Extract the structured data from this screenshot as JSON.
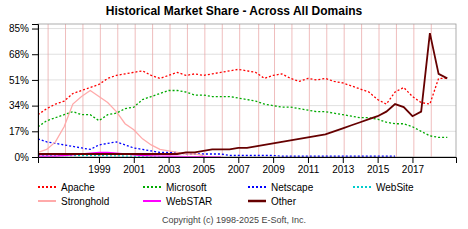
{
  "chart_data": {
    "type": "line",
    "title": "Historical Market Share - Across All Domains",
    "annotations": [
      "Copyright (c) 1998-2025 E-Soft, Inc."
    ],
    "xlim": [
      1995.5,
      2019.5
    ],
    "xticks": [
      1999,
      2001,
      2003,
      2005,
      2007,
      2009,
      2011,
      2013,
      2015,
      2017
    ],
    "ylim": [
      0,
      88
    ],
    "yticks": [
      {
        "value": 0,
        "label": "0%"
      },
      {
        "value": 17,
        "label": "17%"
      },
      {
        "value": 34,
        "label": "34%"
      },
      {
        "value": 51,
        "label": "51%"
      },
      {
        "value": 68,
        "label": "68%"
      },
      {
        "value": 85,
        "label": "85%"
      }
    ],
    "grid": true,
    "vlines": [
      1996.08,
      1997.08,
      1998.08,
      1999.08,
      2000.08,
      2001.08,
      2002.08,
      2003.08,
      2004.08,
      2005.08,
      2006.08,
      2007.08,
      2008.17,
      2009.08,
      2010.08,
      2011.08,
      2012.08,
      2013.08,
      2014.08,
      2015.08,
      2016.08,
      2017.08,
      2018.08
    ],
    "series": [
      {
        "name": "Apache",
        "color": "#ff0000",
        "line_style": "dotted",
        "x": [
          1995.5,
          1996,
          1996.5,
          1997,
          1997.5,
          1998,
          1998.5,
          1999,
          1999.5,
          2000,
          2000.5,
          2001,
          2001.5,
          2002,
          2002.5,
          2003,
          2003.5,
          2004,
          2004.5,
          2005,
          2005.5,
          2006,
          2006.5,
          2007,
          2007.5,
          2008,
          2008.5,
          2009,
          2009.5,
          2010,
          2010.5,
          2011,
          2011.5,
          2012,
          2012.5,
          2013,
          2013.5,
          2014,
          2014.5,
          2015,
          2015.5,
          2016,
          2016.5,
          2017,
          2017.5,
          2018,
          2018.5,
          2019
        ],
        "values": [
          28,
          32,
          35,
          37,
          42,
          44,
          46,
          48,
          52,
          54,
          55,
          56,
          57,
          54,
          52,
          54,
          56,
          54,
          55,
          54,
          55,
          56,
          57,
          58,
          57,
          56,
          52,
          54,
          55,
          52,
          50,
          52,
          51,
          52,
          50,
          49,
          47,
          45,
          43,
          38,
          35,
          43,
          46,
          40,
          36,
          35,
          52,
          52
        ]
      },
      {
        "name": "Microsoft",
        "color": "#00aa00",
        "line_style": "dotted",
        "x": [
          1995.5,
          1996,
          1996.5,
          1997,
          1997.5,
          1998,
          1998.5,
          1999,
          1999.5,
          2000,
          2000.5,
          2001,
          2001.5,
          2002,
          2002.5,
          2003,
          2003.5,
          2004,
          2004.5,
          2005,
          2005.5,
          2006,
          2006.5,
          2007,
          2007.5,
          2008,
          2008.5,
          2009,
          2009.5,
          2010,
          2010.5,
          2011,
          2011.5,
          2012,
          2012.5,
          2013,
          2013.5,
          2014,
          2014.5,
          2015,
          2015.5,
          2016,
          2016.5,
          2017,
          2017.5,
          2018,
          2018.5,
          2019
        ],
        "values": [
          20,
          24,
          26,
          28,
          30,
          28,
          28,
          24,
          28,
          29,
          32,
          33,
          38,
          40,
          42,
          44,
          44,
          43,
          41,
          41,
          40,
          40,
          40,
          39,
          38,
          37,
          35,
          34,
          33,
          33,
          32,
          31,
          30,
          30,
          29,
          28,
          27,
          26,
          26,
          25,
          23,
          22,
          22,
          20,
          17,
          14,
          13,
          13
        ]
      },
      {
        "name": "Netscape",
        "color": "#0000ff",
        "line_style": "dotted",
        "x": [
          1995.5,
          1996,
          1996.5,
          1997,
          1997.5,
          1998,
          1998.5,
          1999,
          1999.5,
          2000,
          2000.5,
          2001,
          2001.5,
          2002,
          2002.5,
          2003,
          2003.5,
          2004,
          2004.5,
          2005,
          2005.5,
          2006,
          2006.5,
          2007,
          2007.5,
          2008,
          2008.5,
          2009,
          2009.5,
          2010,
          2010.5,
          2011,
          2011.5,
          2012,
          2012.5,
          2013,
          2013.5,
          2014,
          2014.5,
          2015,
          2015.5,
          2016
        ],
        "values": [
          12,
          10,
          9,
          8,
          7,
          6,
          5,
          8,
          9,
          10,
          8,
          6,
          5,
          4,
          3,
          3,
          3,
          2,
          2,
          2,
          2,
          2,
          1,
          1,
          1,
          1,
          1,
          1,
          0.5,
          0.5,
          0.5,
          0.5,
          0.5,
          0.5,
          0.5,
          0.5,
          0.5,
          0.5,
          0.5,
          0.5,
          0.5,
          0.5
        ]
      },
      {
        "name": "WebSite",
        "color": "#00cccc",
        "line_style": "dotted",
        "x": [
          1995.5,
          1996,
          1996.5,
          1997,
          1997.5,
          1998,
          1998.5,
          1999,
          1999.5,
          2000,
          2000.5,
          2001,
          2001.5,
          2002,
          2002.5,
          2003,
          2003.5,
          2004,
          2004.5,
          2005
        ],
        "values": [
          1,
          1,
          1,
          1,
          1,
          1,
          1,
          1,
          0.8,
          0.8,
          0.6,
          0.5,
          0.5,
          0.4,
          0.3,
          0.3,
          0.2,
          0.2,
          0.2,
          0.1
        ]
      },
      {
        "name": "Stronghold",
        "color": "#ffaaaa",
        "line_style": "solid",
        "x": [
          1995.5,
          1996,
          1996.5,
          1997,
          1997.5,
          1998,
          1998.5,
          1999,
          1999.5,
          2000,
          2000.5,
          2001,
          2001.5,
          2002,
          2002.5,
          2003,
          2003.5,
          2004,
          2004.5,
          2005
        ],
        "values": [
          3,
          5,
          10,
          20,
          35,
          40,
          44,
          40,
          36,
          30,
          22,
          18,
          12,
          8,
          5,
          4,
          3,
          2,
          2,
          1
        ]
      },
      {
        "name": "WebSTAR",
        "color": "#ff00ff",
        "line_style": "solid",
        "x": [
          1995.5,
          1996,
          1996.5,
          1997,
          1997.5,
          1998,
          1998.5,
          1999,
          1999.5,
          2000,
          2000.5,
          2001,
          2001.5,
          2002,
          2002.5,
          2003,
          2003.5,
          2004,
          2004.5,
          2005,
          2005.5,
          2006
        ],
        "values": [
          0.5,
          0.5,
          0.5,
          1,
          1.5,
          2,
          2.5,
          3,
          3,
          2.5,
          2,
          1.5,
          1,
          0.8,
          0.6,
          0.5,
          0.4,
          0.3,
          0.3,
          0.2,
          0.1,
          0.1
        ]
      },
      {
        "name": "Other",
        "color": "#660000",
        "line_style": "solid",
        "x": [
          1995.5,
          1996,
          1996.5,
          1997,
          1997.5,
          1998,
          1998.5,
          1999,
          1999.5,
          2000,
          2000.5,
          2001,
          2001.5,
          2002,
          2002.5,
          2003,
          2003.5,
          2004,
          2004.5,
          2005,
          2005.5,
          2006,
          2006.5,
          2007,
          2007.5,
          2008,
          2008.5,
          2009,
          2009.5,
          2010,
          2010.5,
          2011,
          2011.5,
          2012,
          2012.5,
          2013,
          2013.5,
          2014,
          2014.5,
          2015,
          2015.5,
          2016,
          2016.5,
          2017,
          2017.5,
          2018,
          2018.5,
          2019
        ],
        "values": [
          2,
          2,
          2,
          2,
          2,
          2,
          2,
          2,
          2,
          2,
          2,
          2,
          2,
          2,
          2,
          2,
          2,
          3,
          3,
          4,
          5,
          5,
          5,
          6,
          6,
          7,
          8,
          9,
          10,
          11,
          12,
          13,
          14,
          15,
          17,
          19,
          21,
          23,
          25,
          27,
          30,
          35,
          33,
          27,
          30,
          82,
          55,
          52
        ]
      }
    ]
  }
}
